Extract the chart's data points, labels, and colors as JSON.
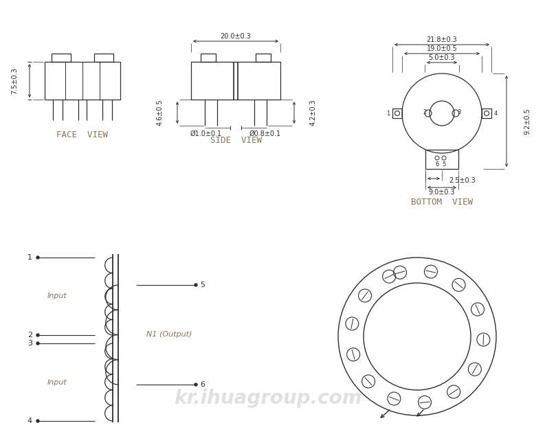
{
  "bg_color": "#ffffff",
  "line_color": "#2c2c2c",
  "schematic_color": "#8B7355",
  "watermark": "kr.ihuagroup.com",
  "face_view_label": "FACE  VIEW",
  "side_view_label": "SIDE  VIEW",
  "bottom_view_label": "BOTTOM  VIEW",
  "dims": {
    "face_height": "7.5±0.3",
    "side_top": "20.0±0.3",
    "side_left": "4.6±0.5",
    "side_right": "4.2±0.3",
    "side_pin_left": "Ø1.0±0.1",
    "side_pin_right": "Ø0.8±0.1",
    "bot_outer": "21.8±0.3",
    "bot_mid": "19.0±0.5",
    "bot_hole": "5.0±0.3",
    "bot_right": "9.2±0.5",
    "bot_small": "2.5±0.3",
    "bot_bottom": "9.0±0.3"
  }
}
